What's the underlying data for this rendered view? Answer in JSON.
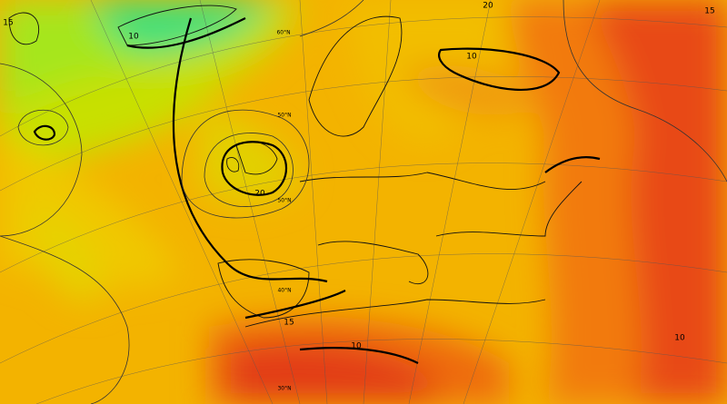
{
  "contour_labels": [
    "15",
    "10",
    "20",
    "10",
    "20",
    "15",
    "10",
    "10",
    "15"
  ],
  "latitude_labels": [
    "60°N",
    "50°N",
    "50°N",
    "40°N",
    "30°N"
  ]
}
